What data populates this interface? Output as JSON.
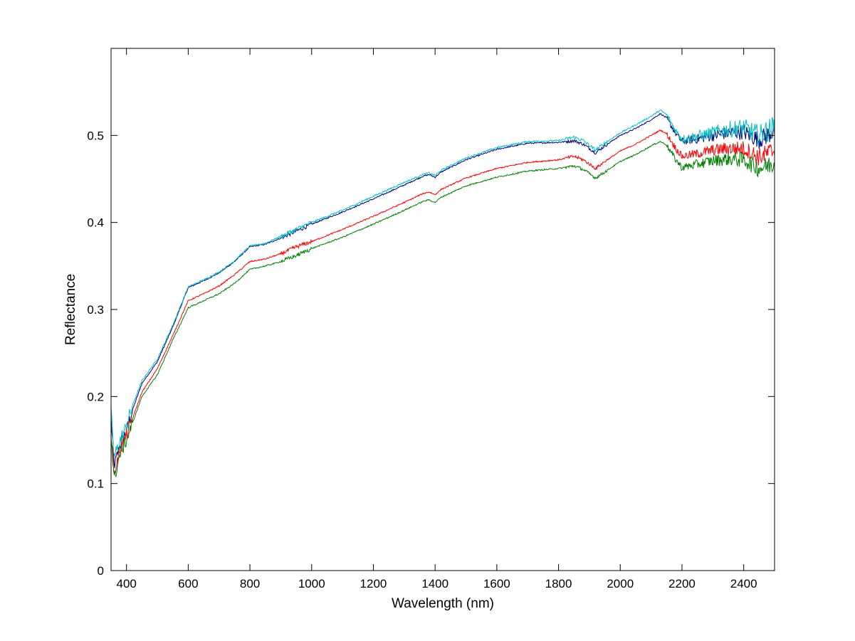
{
  "chart_data": {
    "type": "line",
    "title": "",
    "xlabel": "Wavelength (nm)",
    "ylabel": "Reflectance",
    "xlim": [
      350,
      2500
    ],
    "ylim": [
      0,
      0.6
    ],
    "xticks": [
      400,
      600,
      800,
      1000,
      1200,
      1400,
      1600,
      1800,
      2000,
      2200,
      2400
    ],
    "yticks": [
      0,
      0.1,
      0.2,
      0.3,
      0.4,
      0.5
    ],
    "ytick_labels": [
      "0",
      "0.1",
      "0.2",
      "0.3",
      "0.4",
      "0.5"
    ],
    "grid": false,
    "legend": "none",
    "x": [
      350,
      360,
      380,
      400,
      420,
      450,
      500,
      550,
      600,
      650,
      700,
      750,
      800,
      850,
      900,
      950,
      1000,
      1100,
      1200,
      1300,
      1360,
      1380,
      1400,
      1420,
      1500,
      1600,
      1700,
      1800,
      1850,
      1880,
      1920,
      1950,
      2000,
      2050,
      2100,
      2130,
      2150,
      2180,
      2200,
      2250,
      2300,
      2350,
      2400,
      2450,
      2500
    ],
    "series": [
      {
        "color": "#00007f",
        "noise": 0.006,
        "values": [
          0.175,
          0.12,
          0.145,
          0.16,
          0.185,
          0.215,
          0.24,
          0.28,
          0.325,
          0.333,
          0.342,
          0.355,
          0.372,
          0.375,
          0.382,
          0.39,
          0.398,
          0.412,
          0.427,
          0.443,
          0.453,
          0.455,
          0.452,
          0.458,
          0.472,
          0.484,
          0.491,
          0.492,
          0.494,
          0.49,
          0.48,
          0.488,
          0.5,
          0.508,
          0.518,
          0.525,
          0.52,
          0.502,
          0.493,
          0.496,
          0.5,
          0.503,
          0.504,
          0.495,
          0.505
        ]
      },
      {
        "color": "#00bfbf",
        "noise": 0.007,
        "values": [
          0.18,
          0.13,
          0.15,
          0.165,
          0.19,
          0.218,
          0.243,
          0.282,
          0.326,
          0.334,
          0.343,
          0.356,
          0.373,
          0.376,
          0.384,
          0.392,
          0.4,
          0.414,
          0.43,
          0.446,
          0.455,
          0.457,
          0.454,
          0.46,
          0.474,
          0.486,
          0.493,
          0.494,
          0.498,
          0.494,
          0.483,
          0.491,
          0.503,
          0.512,
          0.522,
          0.529,
          0.524,
          0.505,
          0.496,
          0.499,
          0.503,
          0.507,
          0.509,
          0.5,
          0.51
        ]
      },
      {
        "color": "#ff0000",
        "noise": 0.006,
        "values": [
          0.16,
          0.11,
          0.14,
          0.155,
          0.175,
          0.205,
          0.232,
          0.27,
          0.31,
          0.318,
          0.327,
          0.34,
          0.355,
          0.358,
          0.364,
          0.372,
          0.378,
          0.392,
          0.407,
          0.423,
          0.433,
          0.435,
          0.432,
          0.438,
          0.451,
          0.462,
          0.469,
          0.472,
          0.476,
          0.472,
          0.462,
          0.47,
          0.482,
          0.49,
          0.5,
          0.506,
          0.502,
          0.485,
          0.476,
          0.479,
          0.483,
          0.485,
          0.485,
          0.475,
          0.483
        ]
      },
      {
        "color": "#007f00",
        "noise": 0.006,
        "values": [
          0.155,
          0.105,
          0.135,
          0.15,
          0.17,
          0.2,
          0.225,
          0.265,
          0.302,
          0.31,
          0.318,
          0.33,
          0.346,
          0.35,
          0.355,
          0.362,
          0.37,
          0.383,
          0.398,
          0.414,
          0.424,
          0.426,
          0.423,
          0.429,
          0.442,
          0.452,
          0.459,
          0.462,
          0.465,
          0.461,
          0.451,
          0.458,
          0.47,
          0.478,
          0.488,
          0.493,
          0.489,
          0.472,
          0.463,
          0.467,
          0.471,
          0.473,
          0.472,
          0.462,
          0.468
        ]
      }
    ]
  }
}
